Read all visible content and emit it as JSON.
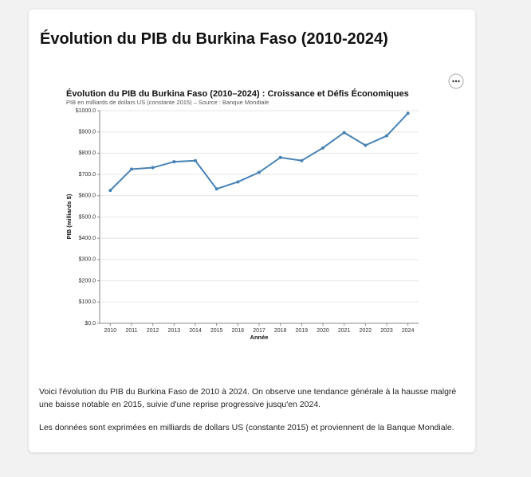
{
  "page": {
    "title": "Évolution du PIB du Burkina Faso (2010-2024)",
    "paragraphs": [
      "Voici l'évolution du PIB du Burkina Faso de 2010 à 2024. On observe une tendance générale à la hausse malgré une baisse notable en 2015, suivie d'une reprise progressive jusqu'en 2024.",
      "Les données sont exprimées en milliards de dollars US (constante 2015) et proviennent de la Banque Mondiale."
    ]
  },
  "chart_data": {
    "type": "line",
    "title": "Évolution du PIB du Burkina Faso (2010–2024) : Croissance et Défis Économiques",
    "subtitle": "PIB en milliards de dollars US (constante 2015) – Source : Banque Mondiale",
    "x_label": "Année",
    "y_label": "PIB (milliards $)",
    "categories": [
      "2010",
      "2011",
      "2012",
      "2013",
      "2014",
      "2015",
      "2016",
      "2017",
      "2018",
      "2019",
      "2020",
      "2021",
      "2022",
      "2023",
      "2024"
    ],
    "values": [
      625,
      725,
      732,
      760,
      765,
      632,
      665,
      710,
      780,
      765,
      825,
      897,
      837,
      882,
      988
    ],
    "color": "#4682b4",
    "ylim": [
      0,
      1000
    ],
    "yticks": [
      {
        "value": 0,
        "label": "$0.0"
      },
      {
        "value": 100,
        "label": "$100.0"
      },
      {
        "value": 200,
        "label": "$200.0"
      },
      {
        "value": 300,
        "label": "$300.0"
      },
      {
        "value": 400,
        "label": "$400.0"
      },
      {
        "value": 500,
        "label": "$500.0"
      },
      {
        "value": 600,
        "label": "$600.0"
      },
      {
        "value": 700,
        "label": "$700.0"
      },
      {
        "value": 800,
        "label": "$800.0"
      },
      {
        "value": 900,
        "label": "$900.0"
      },
      {
        "value": 1000,
        "label": "$1000.0"
      }
    ],
    "grid": true
  }
}
